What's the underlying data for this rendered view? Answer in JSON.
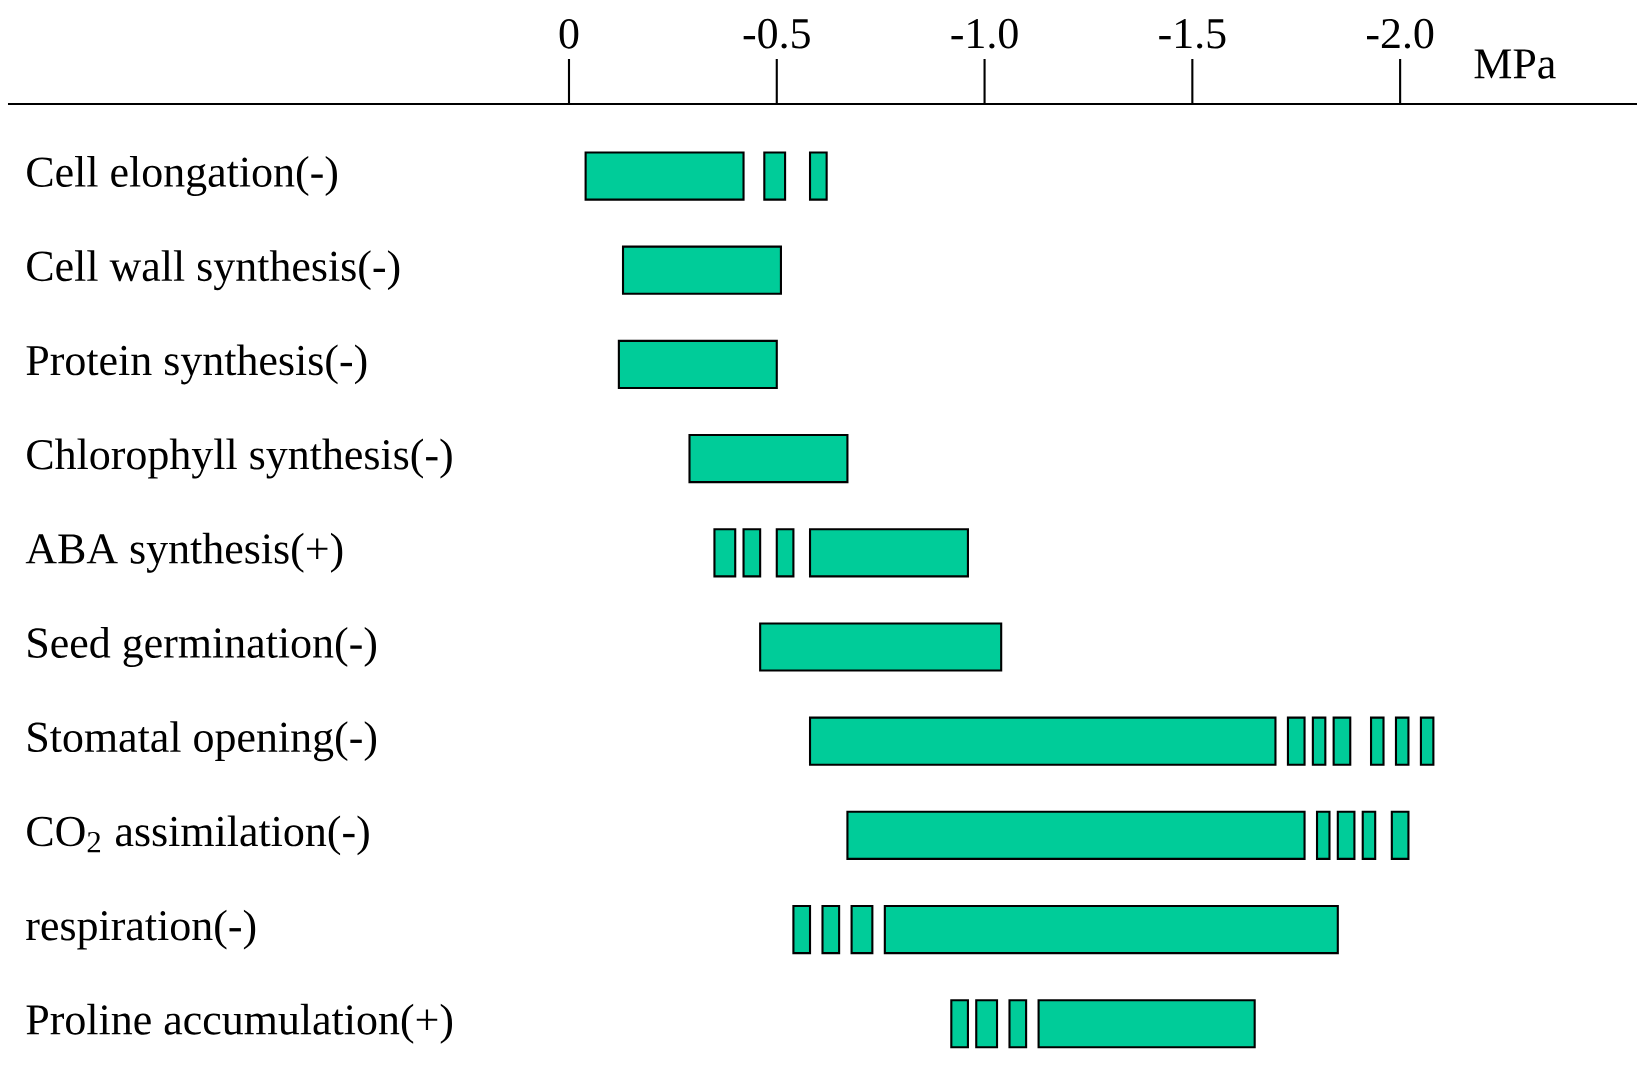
{
  "chart_data": {
    "type": "bar",
    "orientation": "horizontal",
    "xlabel": "MPa",
    "categories": [
      "Cell elongation(-)",
      "Cell wall synthesis(-)",
      "Protein synthesis(-)",
      "Chlorophyll synthesis(-)",
      "ABA synthesis(+)",
      "Seed germination(-)",
      "Stomatal opening(-)",
      "CO$_{2}$ assimilation(-)",
      "respiration(-)",
      "Proline accumulation(+)"
    ],
    "series": [
      {
        "color": "#00cc99",
        "base": [
          -0.04,
          -0.13,
          -0.12,
          -0.29,
          -0.58,
          -0.46,
          -0.58,
          -0.67,
          -0.76,
          -1.13
        ],
        "values": [
          -0.38,
          -0.38,
          -0.38,
          -0.38,
          -0.38,
          -0.58,
          -1.12,
          -1.1,
          -1.09,
          -0.52
        ]
      },
      {
        "color": "#00cc99",
        "base": [
          -0.47,
          null,
          null,
          null,
          -0.35,
          null,
          -1.73,
          -1.8,
          -0.54,
          -0.92
        ],
        "values": [
          -0.05,
          null,
          null,
          null,
          -0.05,
          null,
          -0.04,
          -0.03,
          -0.04,
          -0.04
        ]
      },
      {
        "color": "#00cc99",
        "base": [
          -0.58,
          null,
          null,
          null,
          -0.42,
          null,
          -1.79,
          -1.85,
          -0.61,
          -0.98
        ],
        "values": [
          -0.04,
          null,
          null,
          null,
          -0.04,
          null,
          -0.03,
          -0.04,
          -0.04,
          -0.05
        ]
      },
      {
        "color": "#00cc99",
        "base": [
          null,
          null,
          null,
          null,
          -0.5,
          null,
          -1.84,
          -1.91,
          -0.68,
          -1.06
        ],
        "values": [
          null,
          null,
          null,
          null,
          -0.04,
          null,
          -0.04,
          -0.03,
          -0.05,
          -0.04
        ]
      },
      {
        "color": "#00cc99",
        "base": [
          null,
          null,
          null,
          null,
          null,
          null,
          -1.93,
          -1.98,
          null,
          null
        ],
        "values": [
          null,
          null,
          null,
          null,
          null,
          null,
          -0.03,
          -0.04,
          null,
          null
        ]
      },
      {
        "color": "#00cc99",
        "base": [
          null,
          null,
          null,
          null,
          null,
          null,
          -1.99,
          null,
          null,
          null
        ],
        "values": [
          null,
          null,
          null,
          null,
          null,
          null,
          -0.03,
          null,
          null,
          null
        ]
      },
      {
        "color": "#00cc99",
        "base": [
          null,
          null,
          null,
          null,
          null,
          null,
          -2.05,
          null,
          null,
          null
        ],
        "values": [
          null,
          null,
          null,
          null,
          null,
          null,
          -0.03,
          null,
          null,
          null
        ]
      }
    ],
    "xlim": [
      1.35,
      -2.57
    ],
    "xticks": [
      0,
      {
        "value": -0.5,
        "label": "-0.5"
      },
      {
        "value": -1.0,
        "label": "-1.0"
      },
      {
        "value": -1.5,
        "label": "-1.5"
      },
      {
        "value": -2.0,
        "label": "-2.0"
      }
    ]
  }
}
